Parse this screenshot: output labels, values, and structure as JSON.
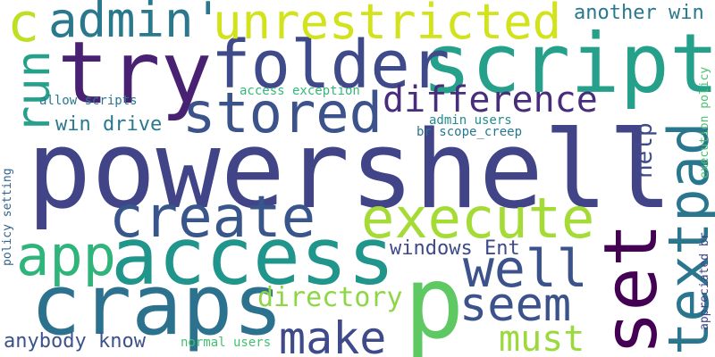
{
  "cloud": {
    "words": [
      {
        "text": "powershell",
        "color": "#414487"
      },
      {
        "text": "script",
        "color": "#25a08a"
      },
      {
        "text": "try",
        "color": "#482173"
      },
      {
        "text": "folder",
        "color": "#3e4a89"
      },
      {
        "text": "unrestricted",
        "color": "#d2e21b"
      },
      {
        "text": "admin'",
        "color": "#2a788e"
      },
      {
        "text": "c",
        "color": "#bddf26"
      },
      {
        "text": "run",
        "color": "#25a08a"
      },
      {
        "text": "stored",
        "color": "#3b528b"
      },
      {
        "text": "difference",
        "color": "#472d7b"
      },
      {
        "text": "textpad",
        "color": "#2a768e"
      },
      {
        "text": "create",
        "color": "#39568c"
      },
      {
        "text": "execute",
        "color": "#a5db36"
      },
      {
        "text": "access",
        "color": "#1f958b"
      },
      {
        "text": "app",
        "color": "#2fb47c"
      },
      {
        "text": "craps",
        "color": "#2c728e"
      },
      {
        "text": "p",
        "color": "#5ec962"
      },
      {
        "text": "set",
        "color": "#440154"
      },
      {
        "text": "well",
        "color": "#3b528b"
      },
      {
        "text": "seem",
        "color": "#3b528b"
      },
      {
        "text": "make",
        "color": "#3e4a89"
      },
      {
        "text": "must",
        "color": "#9bd93c"
      },
      {
        "text": "directory",
        "color": "#8ed645"
      },
      {
        "text": "windows Ent",
        "color": "#3e4a89"
      },
      {
        "text": "anybody know",
        "color": "#3b528b"
      },
      {
        "text": "normal users",
        "color": "#44bf70"
      },
      {
        "text": "help",
        "color": "#3e4a89"
      },
      {
        "text": "another win",
        "color": "#2a788e"
      },
      {
        "text": "win drive",
        "color": "#2a788e"
      },
      {
        "text": "allow scripts",
        "color": "#2a788e"
      },
      {
        "text": "access exception",
        "color": "#35b779"
      },
      {
        "text": "admin users",
        "color": "#228c8d"
      },
      {
        "text": "br scope_creep",
        "color": "#2a768e"
      },
      {
        "text": "policy setting",
        "color": "#33638d"
      },
      {
        "text": "execution policy",
        "color": "#4ac16d"
      },
      {
        "text": "appreciated br",
        "color": "#414487"
      }
    ]
  }
}
